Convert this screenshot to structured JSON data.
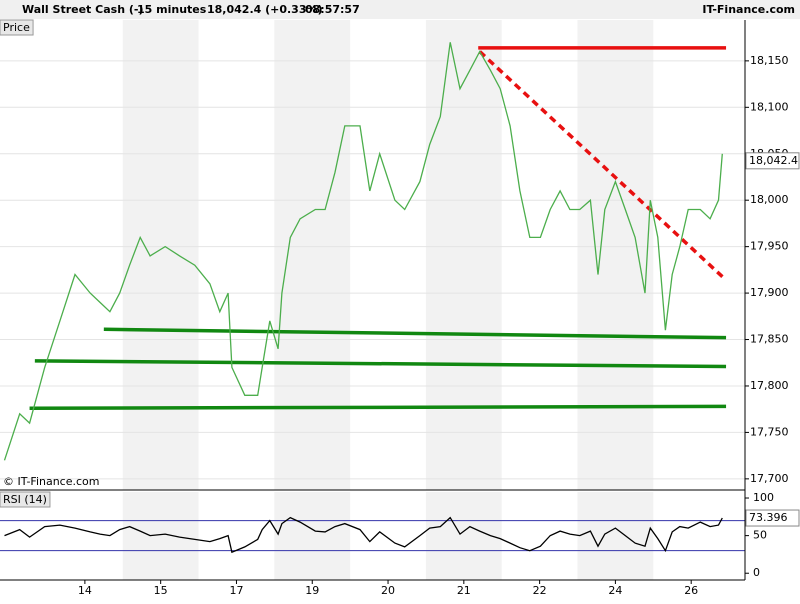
{
  "header": {
    "instrument": "Wall Street Cash (-)",
    "interval": "15 minutes",
    "quote": "18,042.4 (+0.33%)",
    "time": "08:57:57",
    "brand": "IT-Finance.com"
  },
  "chart_data": [
    {
      "type": "line",
      "title": "Price",
      "watermark": "© IT-Finance.com",
      "x": [
        -1.06,
        -0.86,
        -0.73,
        -0.53,
        -0.33,
        -0.13,
        0.07,
        0.2,
        0.33,
        0.46,
        0.59,
        0.73,
        0.86,
        1.06,
        1.25,
        1.45,
        1.65,
        1.78,
        1.89,
        1.94,
        2.11,
        2.28,
        2.34,
        2.44,
        2.55,
        2.6,
        2.71,
        2.84,
        3.04,
        3.17,
        3.3,
        3.43,
        3.63,
        3.76,
        3.89,
        4.09,
        4.22,
        4.42,
        4.55,
        4.69,
        4.82,
        4.95,
        5.08,
        5.21,
        5.35,
        5.48,
        5.61,
        5.74,
        5.87,
        6.01,
        6.14,
        6.27,
        6.4,
        6.53,
        6.67,
        6.77,
        6.86,
        7.0,
        7.13,
        7.26,
        7.39,
        7.46,
        7.56,
        7.66,
        7.75,
        7.85,
        7.96,
        8.12,
        8.25,
        8.36,
        8.41
      ],
      "series": [
        {
          "color": "#4cae4c",
          "values": [
            17720,
            17770,
            17760,
            17820,
            17870,
            17920,
            17900,
            17890,
            17880,
            17900,
            17930,
            17960,
            17940,
            17950,
            17940,
            17930,
            17910,
            17880,
            17900,
            17820,
            17790,
            17790,
            17820,
            17870,
            17840,
            17900,
            17960,
            17980,
            17990,
            17990,
            18030,
            18080,
            18080,
            18010,
            18050,
            18000,
            17990,
            18020,
            18060,
            18090,
            18170,
            18120,
            18140,
            18160,
            18140,
            18120,
            18080,
            18010,
            17960,
            17960,
            17990,
            18010,
            17990,
            17990,
            18000,
            17920,
            17990,
            18020,
            17990,
            17960,
            17900,
            18000,
            17960,
            17860,
            17920,
            17950,
            17990,
            17990,
            17980,
            18000,
            18050
          ]
        }
      ],
      "last_price": {
        "value": 18042.4,
        "label": "18,042.4"
      },
      "annotation_lines": [
        {
          "color": "#e81010",
          "dashed": false,
          "x": [
            5.19,
            8.46
          ],
          "y": [
            18164,
            18164
          ]
        },
        {
          "color": "#e81010",
          "dashed": true,
          "x": [
            5.21,
            8.46
          ],
          "y": [
            18160,
            17914
          ]
        },
        {
          "color": "#118811",
          "dashed": false,
          "x": [
            0.25,
            8.46
          ],
          "y": [
            17861,
            17852
          ]
        },
        {
          "color": "#118811",
          "dashed": false,
          "x": [
            -0.66,
            8.46
          ],
          "y": [
            17827,
            17821
          ]
        },
        {
          "color": "#118811",
          "dashed": false,
          "x": [
            -0.73,
            8.46
          ],
          "y": [
            17776,
            17778
          ]
        }
      ],
      "xlim": [
        -1.12,
        8.71
      ],
      "ylim": [
        17688,
        18194
      ],
      "yticks": [
        {
          "value": 17700,
          "label": "17,700"
        },
        {
          "value": 17750,
          "label": "17,750"
        },
        {
          "value": 17800,
          "label": "17,800"
        },
        {
          "value": 17850,
          "label": "17,850"
        },
        {
          "value": 17900,
          "label": "17,900"
        },
        {
          "value": 17950,
          "label": "17,950"
        },
        {
          "value": 18000,
          "label": "18,000"
        },
        {
          "value": 18050,
          "label": "18,050"
        },
        {
          "value": 18100,
          "label": "18,100"
        },
        {
          "value": 18150,
          "label": "18,150"
        }
      ],
      "grid": true
    },
    {
      "type": "line",
      "title": "RSI (14)",
      "x": [
        -1.06,
        -0.86,
        -0.73,
        -0.53,
        -0.33,
        -0.13,
        0.07,
        0.2,
        0.33,
        0.46,
        0.59,
        0.73,
        0.86,
        1.06,
        1.25,
        1.45,
        1.65,
        1.78,
        1.89,
        1.94,
        2.11,
        2.28,
        2.34,
        2.44,
        2.55,
        2.6,
        2.71,
        2.84,
        3.04,
        3.17,
        3.3,
        3.43,
        3.63,
        3.76,
        3.89,
        4.09,
        4.22,
        4.42,
        4.55,
        4.69,
        4.82,
        4.95,
        5.08,
        5.21,
        5.35,
        5.48,
        5.61,
        5.74,
        5.87,
        6.01,
        6.14,
        6.27,
        6.4,
        6.53,
        6.67,
        6.77,
        6.86,
        7.0,
        7.13,
        7.26,
        7.39,
        7.46,
        7.56,
        7.66,
        7.75,
        7.85,
        7.96,
        8.12,
        8.25,
        8.36,
        8.41
      ],
      "series": [
        {
          "color": "#000000",
          "values": [
            50,
            58,
            48,
            62,
            64,
            60,
            55,
            52,
            50,
            58,
            62,
            56,
            50,
            52,
            48,
            45,
            42,
            46,
            50,
            28,
            35,
            45,
            58,
            70,
            52,
            66,
            74,
            68,
            56,
            55,
            62,
            66,
            58,
            42,
            55,
            40,
            35,
            50,
            60,
            62,
            74,
            52,
            62,
            56,
            50,
            46,
            40,
            34,
            30,
            36,
            50,
            56,
            52,
            50,
            56,
            36,
            52,
            60,
            50,
            40,
            36,
            60,
            46,
            30,
            55,
            62,
            60,
            68,
            62,
            64,
            73.396
          ]
        }
      ],
      "levels": [
        30,
        70
      ],
      "level_color": "#3333aa",
      "xlim": [
        -1.12,
        8.71
      ],
      "ylim": [
        -9,
        108
      ],
      "yticks": [
        0,
        50,
        100
      ],
      "xticks": [
        {
          "value": 0,
          "label": "14"
        },
        {
          "value": 1,
          "label": "15"
        },
        {
          "value": 2,
          "label": "17"
        },
        {
          "value": 3,
          "label": "19"
        },
        {
          "value": 4,
          "label": "20"
        },
        {
          "value": 5,
          "label": "21"
        },
        {
          "value": 6,
          "label": "22"
        },
        {
          "value": 7,
          "label": "24"
        },
        {
          "value": 8,
          "label": "26"
        }
      ]
    }
  ]
}
